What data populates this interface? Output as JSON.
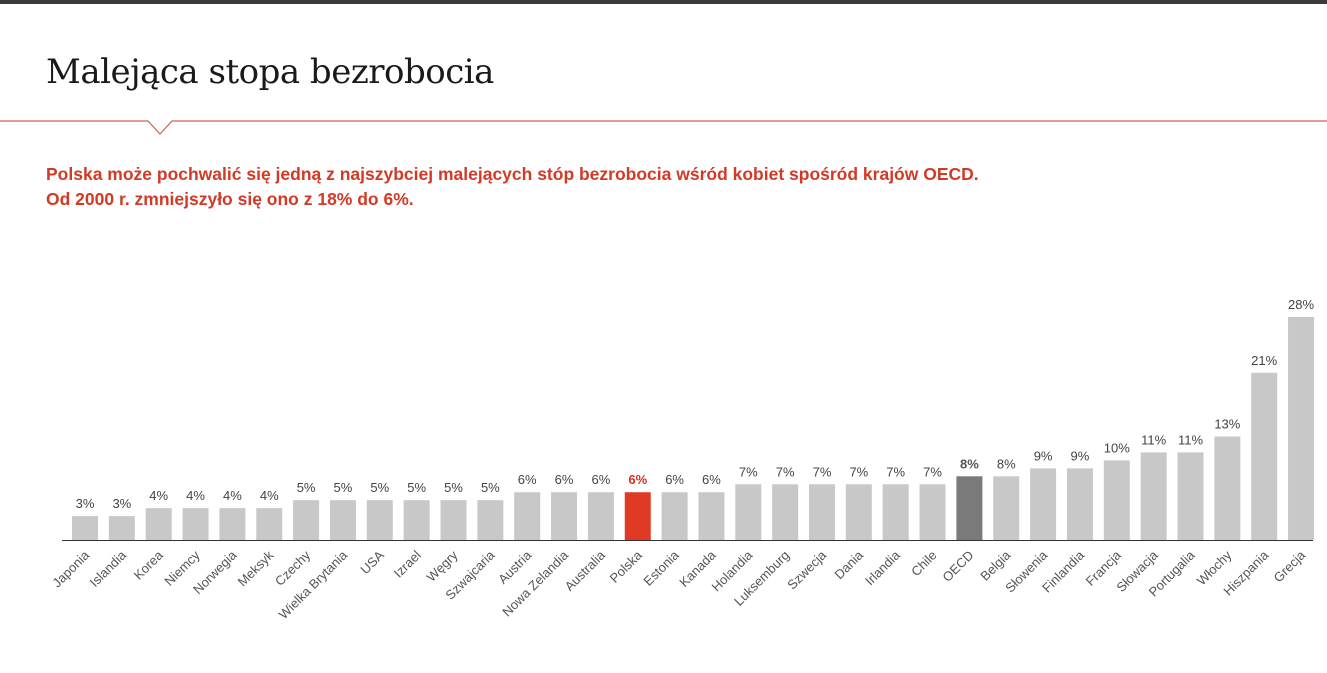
{
  "header": {
    "title": "Malejąca stopa bezrobocia"
  },
  "subtitle": {
    "line1": "Polska może pochwalić się jedną z najszybciej malejących stóp bezrobocia wśród kobiet spośród krajów OECD.",
    "line2": "Od 2000 r. zmniejszyło się ono z 18% do 6%."
  },
  "colors": {
    "accent": "#d23a26",
    "bar_default": "#c8c8c8",
    "bar_highlight_poland": "#e03a24",
    "bar_highlight_oecd": "#7a7a7a",
    "rule": "#d2634f"
  },
  "chart_data": {
    "type": "bar",
    "categories": [
      "Japonia",
      "Islandia",
      "Korea",
      "Niemcy",
      "Norwegia",
      "Meksyk",
      "Czechy",
      "Wielka Brytania",
      "USA",
      "Izrael",
      "Węgry",
      "Szwajcaria",
      "Austria",
      "Nowa Zelandia",
      "Australia",
      "Polska",
      "Estonia",
      "Kanada",
      "Holandia",
      "Luksemburg",
      "Szwecja",
      "Dania",
      "Irlandia",
      "Chile",
      "OECD",
      "Belgia",
      "Słowenia",
      "Finlandia",
      "Francja",
      "Słowacja",
      "Portugalia",
      "Włochy",
      "Hiszpania",
      "Grecja"
    ],
    "values": [
      3,
      3,
      4,
      4,
      4,
      4,
      5,
      5,
      5,
      5,
      5,
      5,
      6,
      6,
      6,
      6,
      6,
      6,
      7,
      7,
      7,
      7,
      7,
      7,
      8,
      8,
      9,
      9,
      10,
      11,
      11,
      13,
      21,
      28
    ],
    "labels": [
      "3%",
      "3%",
      "4%",
      "4%",
      "4%",
      "4%",
      "5%",
      "5%",
      "5%",
      "5%",
      "5%",
      "5%",
      "6%",
      "6%",
      "6%",
      "6%",
      "6%",
      "6%",
      "7%",
      "7%",
      "7%",
      "7%",
      "7%",
      "7%",
      "8%",
      "8%",
      "9%",
      "9%",
      "10%",
      "11%",
      "11%",
      "13%",
      "21%",
      "28%"
    ],
    "highlights": {
      "Polska": "red",
      "OECD": "dark"
    },
    "ylim": [
      0,
      28
    ],
    "grid": false,
    "legend": "none",
    "xlabel": "",
    "ylabel": ""
  }
}
